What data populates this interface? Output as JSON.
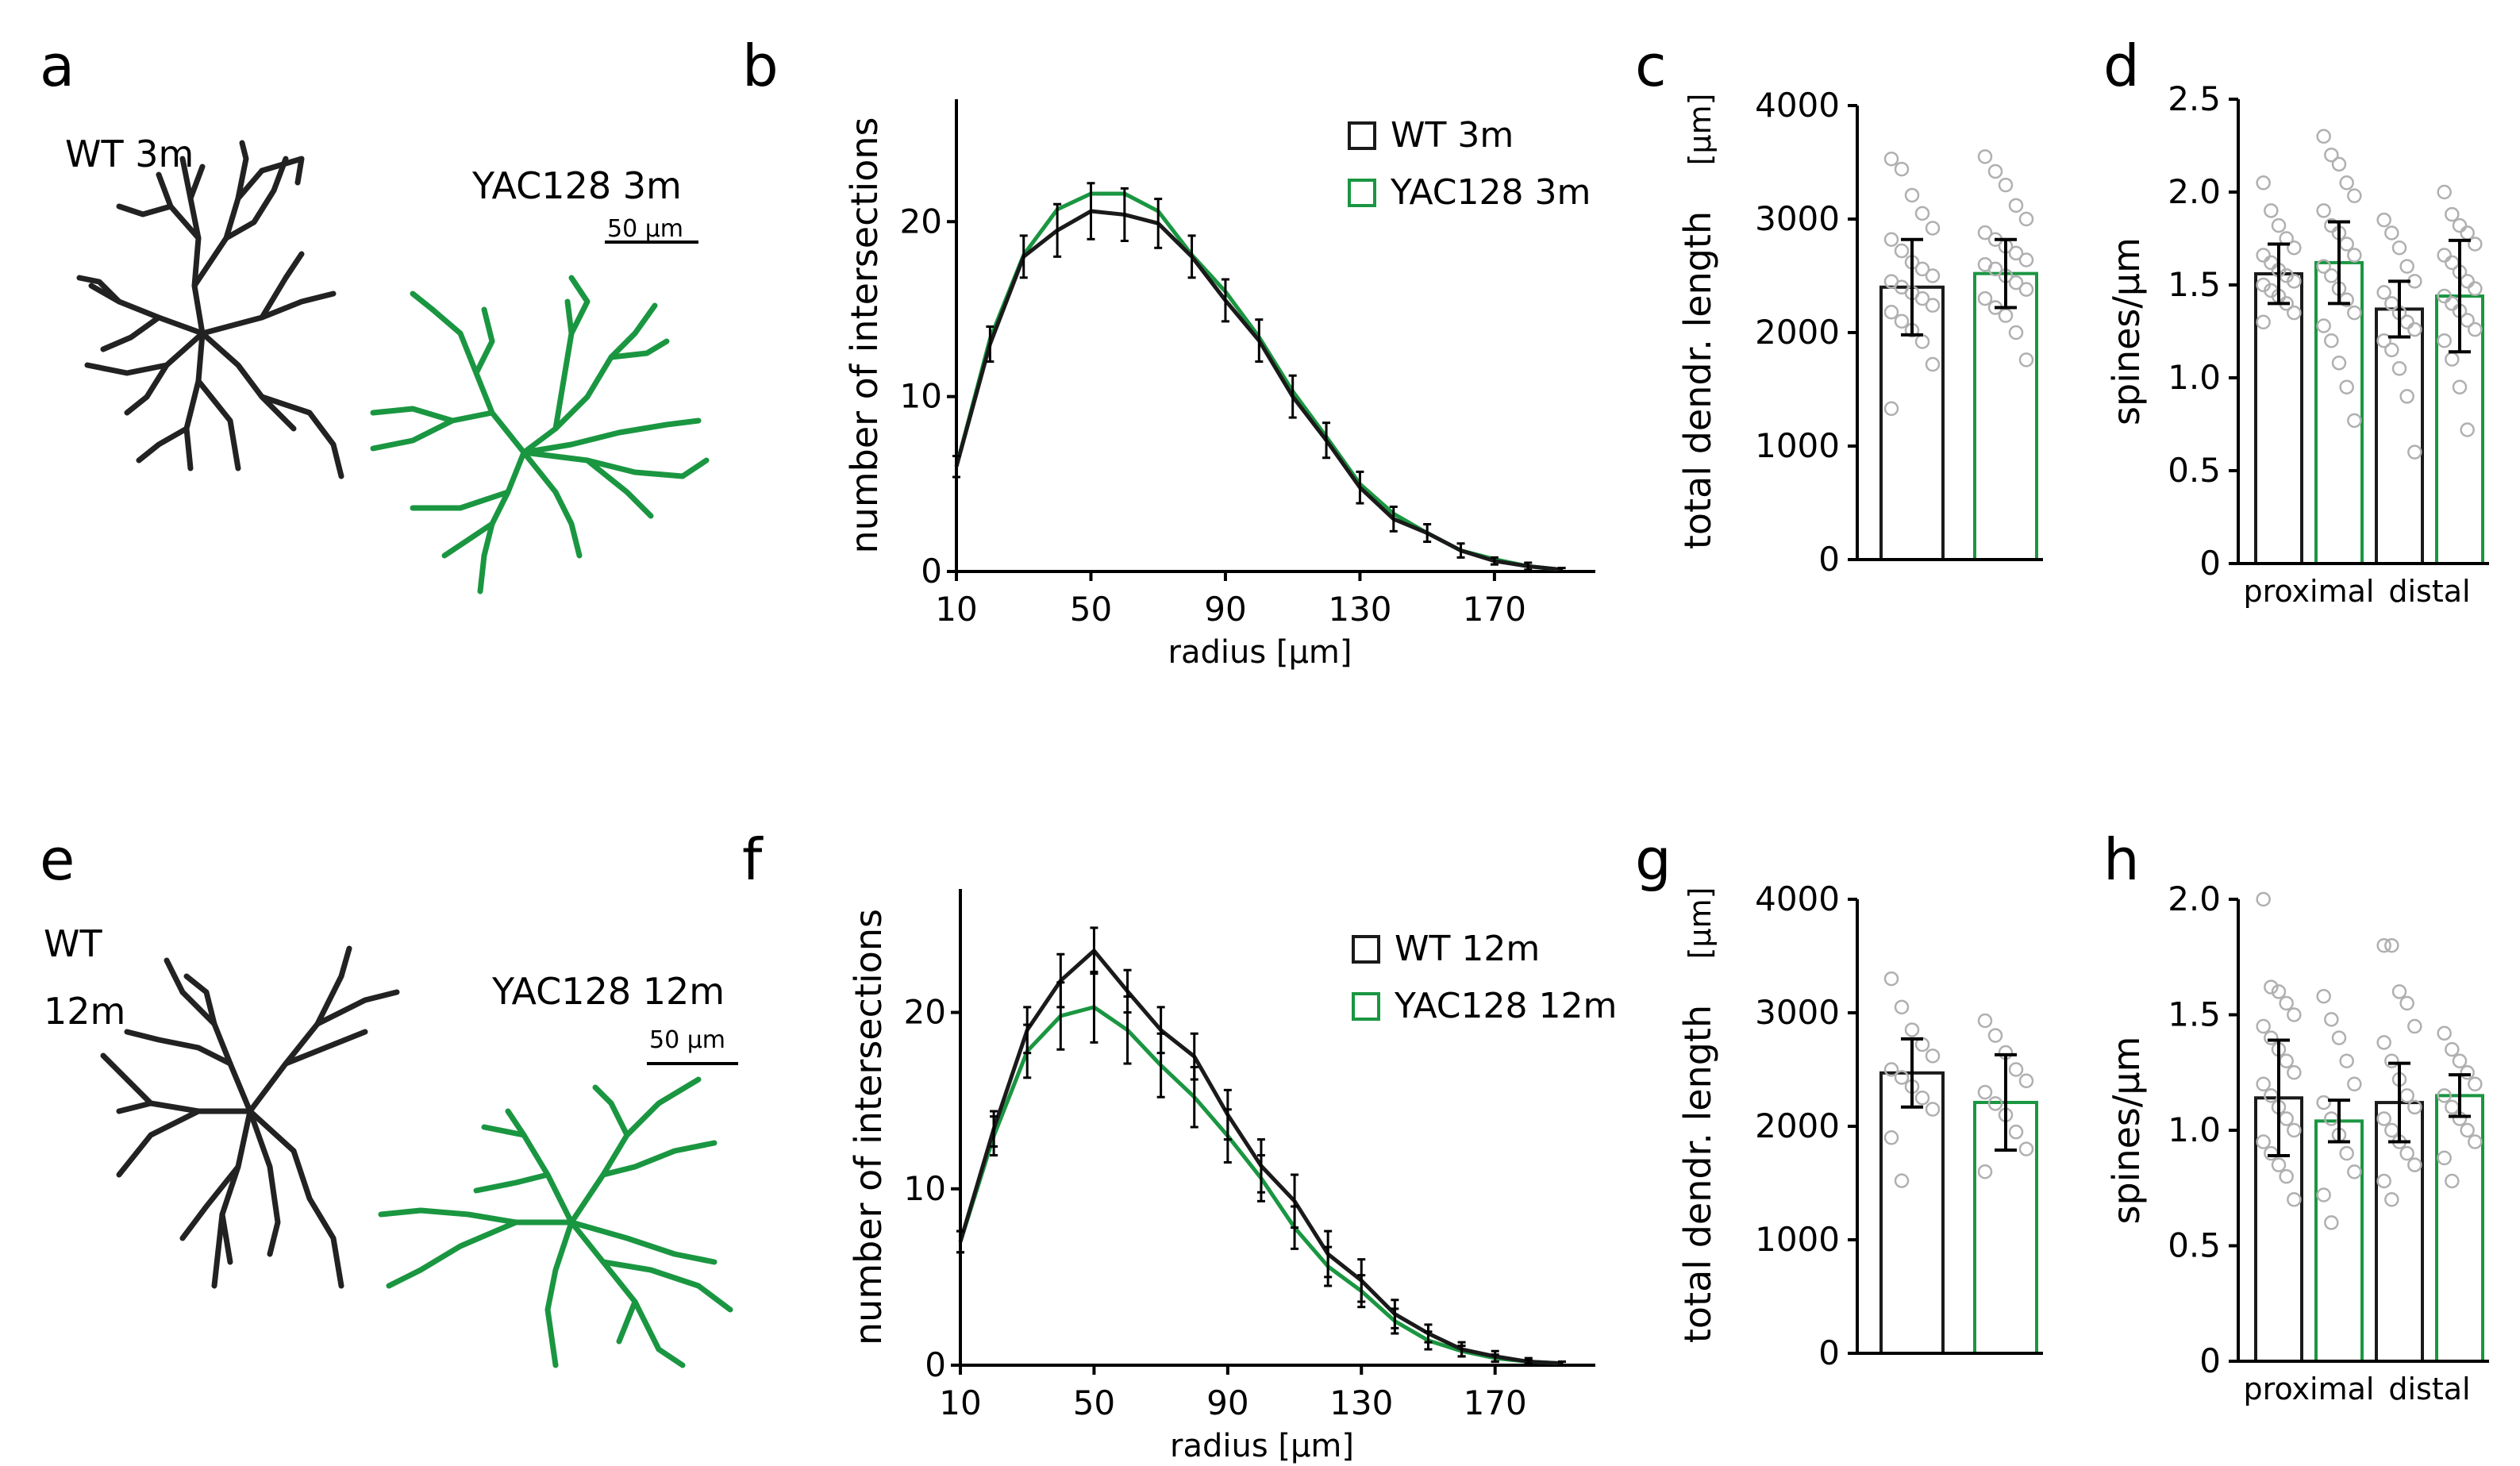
{
  "colors": {
    "wt": "#1a1a1a",
    "yac": "#1a9641"
  },
  "panels": {
    "a": "a",
    "b": "b",
    "c": "c",
    "d": "d",
    "e": "e",
    "f": "f",
    "g": "g",
    "h": "h"
  },
  "neurons": {
    "top_wt": "WT 3m",
    "top_yac": "YAC128 3m",
    "top_scale": "50 µm",
    "bot_wt_line1": "WT",
    "bot_wt_line2": "12m",
    "bot_yac": "YAC128 12m",
    "bot_scale": "50 µm"
  },
  "chart_data": [
    {
      "id": "b",
      "type": "line",
      "title": "",
      "xlabel": "radius [µm]",
      "ylabel": "number of intersections",
      "xlim": [
        10,
        200
      ],
      "ylim": [
        0,
        27
      ],
      "xticks": [
        10,
        50,
        90,
        130,
        170
      ],
      "yticks": [
        0,
        10,
        20
      ],
      "x": [
        10,
        20,
        30,
        40,
        50,
        60,
        70,
        80,
        90,
        100,
        110,
        120,
        130,
        140,
        150,
        160,
        170,
        180,
        190
      ],
      "series": [
        {
          "name": "WT 3m",
          "color": "#1a1a1a",
          "values": [
            6,
            13,
            18,
            19.5,
            20.6,
            20.4,
            19.9,
            18,
            15.5,
            13.2,
            10,
            7.5,
            4.8,
            3,
            2.2,
            1.2,
            0.6,
            0.3,
            0.1
          ],
          "errors": [
            0.6,
            1.0,
            1.2,
            1.5,
            1.6,
            1.5,
            1.4,
            1.2,
            1.2,
            1.2,
            1.2,
            1.0,
            0.9,
            0.7,
            0.5,
            0.4,
            0.2,
            0.2,
            0.1
          ]
        },
        {
          "name": "YAC128 3m",
          "color": "#1a9641",
          "values": [
            6,
            13.3,
            18.1,
            20.7,
            21.6,
            21.6,
            20.6,
            18.1,
            16,
            13.4,
            10.3,
            7.7,
            5,
            3.3,
            2.2,
            1.2,
            0.7,
            0.3,
            0.1
          ]
        }
      ]
    },
    {
      "id": "c",
      "type": "bar",
      "xlabel": "",
      "ylabel": "total dendr. length",
      "yunit": "[µm]",
      "ylim": [
        0,
        4000
      ],
      "yticks": [
        0,
        1000,
        2000,
        3000,
        4000
      ],
      "categories": [
        "WT 3m",
        "YAC128 3m"
      ],
      "values": [
        2400,
        2520
      ],
      "errors": [
        420,
        300
      ],
      "points": [
        [
          3530,
          3440,
          3210,
          3050,
          2920,
          2820,
          2720,
          2620,
          2560,
          2500,
          2450,
          2400,
          2350,
          2300,
          2240,
          2180,
          2100,
          2020,
          1920,
          1720,
          1330
        ],
        [
          3550,
          3420,
          3300,
          3120,
          3000,
          2880,
          2820,
          2760,
          2700,
          2640,
          2600,
          2560,
          2500,
          2440,
          2380,
          2300,
          2220,
          2150,
          2000,
          1760
        ]
      ]
    },
    {
      "id": "d",
      "type": "bar",
      "xlabel": "",
      "ylabel": "spines/µm",
      "ylim": [
        0,
        2.5
      ],
      "yticks": [
        0,
        0.5,
        1.0,
        1.5,
        2.0,
        2.5
      ],
      "ytick_labels": [
        "0",
        "0.5",
        "1.0",
        "1.5",
        "2.0",
        "2.5"
      ],
      "group_labels": [
        "proximal",
        "distal"
      ],
      "categories": [
        "proximal WT 3m",
        "proximal YAC128 3m",
        "distal WT 3m",
        "distal YAC128 3m"
      ],
      "values": [
        1.56,
        1.62,
        1.37,
        1.44
      ],
      "errors": [
        0.16,
        0.22,
        0.15,
        0.3
      ],
      "points": [
        [
          2.05,
          1.9,
          1.82,
          1.75,
          1.7,
          1.66,
          1.62,
          1.58,
          1.55,
          1.52,
          1.5,
          1.47,
          1.44,
          1.4,
          1.35,
          1.3
        ],
        [
          2.3,
          2.2,
          2.15,
          2.05,
          1.98,
          1.9,
          1.82,
          1.78,
          1.72,
          1.66,
          1.6,
          1.55,
          1.48,
          1.42,
          1.35,
          1.28,
          1.2,
          1.08,
          0.95,
          0.77
        ],
        [
          1.85,
          1.78,
          1.7,
          1.6,
          1.52,
          1.46,
          1.4,
          1.35,
          1.3,
          1.26,
          1.2,
          1.15,
          1.05,
          0.9,
          0.6
        ],
        [
          2.0,
          1.88,
          1.82,
          1.78,
          1.72,
          1.66,
          1.62,
          1.57,
          1.52,
          1.48,
          1.44,
          1.4,
          1.36,
          1.31,
          1.26,
          1.2,
          1.1,
          0.95,
          0.72
        ]
      ]
    },
    {
      "id": "f",
      "type": "line",
      "title": "",
      "xlabel": "radius [µm]",
      "ylabel": "number of intersections",
      "xlim": [
        10,
        200
      ],
      "ylim": [
        0,
        27
      ],
      "xticks": [
        10,
        50,
        90,
        130,
        170
      ],
      "yticks": [
        0,
        10,
        20
      ],
      "x": [
        10,
        20,
        30,
        40,
        50,
        60,
        70,
        80,
        90,
        100,
        110,
        120,
        130,
        140,
        150,
        160,
        170,
        180,
        190
      ],
      "series": [
        {
          "name": "WT 12m",
          "color": "#1a1a1a",
          "values": [
            7,
            13.4,
            19,
            21.8,
            23.5,
            21.2,
            19,
            17.5,
            14.2,
            11.3,
            9.3,
            6.3,
            4.8,
            2.9,
            1.8,
            0.9,
            0.5,
            0.2,
            0.1
          ],
          "errors": [
            0.6,
            1.0,
            1.3,
            1.5,
            1.3,
            1.2,
            1.3,
            1.3,
            1.4,
            1.5,
            1.5,
            1.3,
            1.2,
            0.8,
            0.5,
            0.4,
            0.3,
            0.2,
            0.1
          ]
        },
        {
          "name": "YAC128 12m",
          "color": "#1a9641",
          "values": [
            7,
            13,
            17.8,
            19.8,
            20.3,
            19,
            17,
            15.2,
            13,
            10.6,
            7.8,
            5.6,
            4.2,
            2.5,
            1.4,
            0.8,
            0.4,
            0.2,
            0.1
          ],
          "errors": [
            0.6,
            1.1,
            1.5,
            1.9,
            2.0,
            1.9,
            1.8,
            1.7,
            1.5,
            1.3,
            1.2,
            1.1,
            0.9,
            0.7,
            0.5,
            0.3,
            0.2,
            0.1,
            0.1
          ]
        }
      ]
    },
    {
      "id": "g",
      "type": "bar",
      "xlabel": "",
      "ylabel": "total dendr. length",
      "yunit": "[µm]",
      "ylim": [
        0,
        4000
      ],
      "yticks": [
        0,
        1000,
        2000,
        3000,
        4000
      ],
      "categories": [
        "WT 12m",
        "YAC128 12m"
      ],
      "values": [
        2470,
        2210
      ],
      "errors": [
        300,
        420
      ],
      "points": [
        [
          3300,
          3050,
          2850,
          2720,
          2620,
          2500,
          2430,
          2350,
          2250,
          2150,
          1900,
          1520
        ],
        [
          2930,
          2800,
          2650,
          2500,
          2400,
          2300,
          2200,
          2100,
          1950,
          1800,
          1600
        ]
      ]
    },
    {
      "id": "h",
      "type": "bar",
      "xlabel": "",
      "ylabel": "spines/µm",
      "ylim": [
        0,
        2.0
      ],
      "yticks": [
        0,
        0.5,
        1.0,
        1.5,
        2.0
      ],
      "ytick_labels": [
        "0",
        "0.5",
        "1.0",
        "1.5",
        "2.0"
      ],
      "group_labels": [
        "proximal",
        "distal"
      ],
      "categories": [
        "proximal WT 12m",
        "proximal YAC128 12m",
        "distal WT 12m",
        "distal YAC128 12m"
      ],
      "values": [
        1.14,
        1.04,
        1.12,
        1.15
      ],
      "errors": [
        0.25,
        0.09,
        0.17,
        0.09
      ],
      "points": [
        [
          2.0,
          1.62,
          1.6,
          1.55,
          1.5,
          1.45,
          1.4,
          1.35,
          1.3,
          1.25,
          1.2,
          1.15,
          1.1,
          1.05,
          1.0,
          0.95,
          0.9,
          0.85,
          0.8,
          0.7
        ],
        [
          1.58,
          1.48,
          1.4,
          1.3,
          1.2,
          1.12,
          1.05,
          0.98,
          0.9,
          0.82,
          0.72,
          0.6
        ],
        [
          1.8,
          1.8,
          1.6,
          1.55,
          1.45,
          1.38,
          1.3,
          1.22,
          1.15,
          1.1,
          1.05,
          1.0,
          0.95,
          0.9,
          0.85,
          0.78,
          0.7
        ],
        [
          1.42,
          1.35,
          1.3,
          1.25,
          1.2,
          1.15,
          1.1,
          1.05,
          1.0,
          0.95,
          0.88,
          0.78
        ]
      ]
    }
  ]
}
